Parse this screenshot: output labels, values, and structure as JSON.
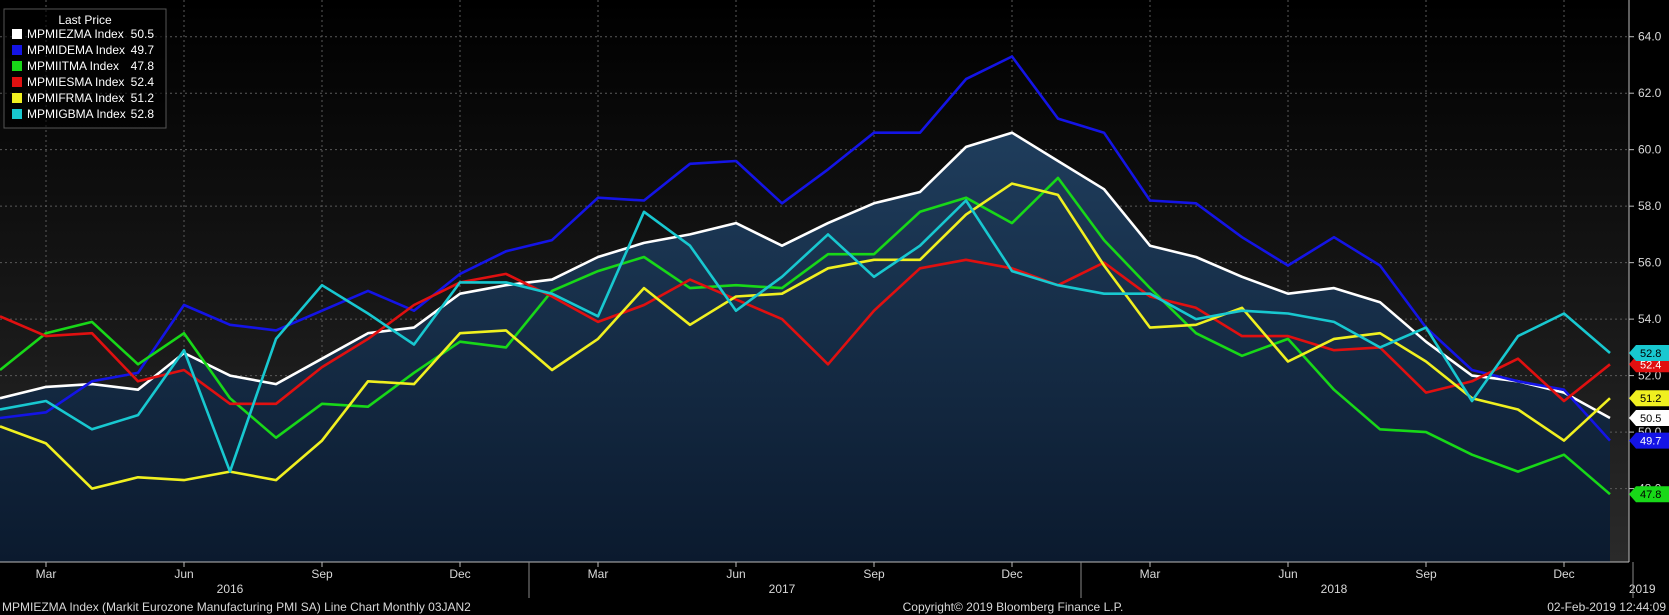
{
  "chart_data": {
    "type": "line",
    "title": "MPMIEZMA Index (Markit Eurozone Manufacturing PMI SA) Line Chart  Monthly 03JAN2",
    "legend_title": "Last Price",
    "legend_position": "top-left",
    "ylim": [
      45.4,
      65.3
    ],
    "yticks": [
      "64.0",
      "62.0",
      "60.0",
      "58.0",
      "56.0",
      "54.0",
      "52.0",
      "50.0",
      "48.0"
    ],
    "ytick_values": [
      64,
      62,
      60,
      58,
      56,
      54,
      52,
      50,
      48
    ],
    "x_month_labels": [
      {
        "label": "Mar",
        "index": 1
      },
      {
        "label": "Jun",
        "index": 4
      },
      {
        "label": "Sep",
        "index": 7
      },
      {
        "label": "Dec",
        "index": 10
      },
      {
        "label": "Mar",
        "index": 13
      },
      {
        "label": "Jun",
        "index": 16
      },
      {
        "label": "Sep",
        "index": 19
      },
      {
        "label": "Dec",
        "index": 22
      },
      {
        "label": "Mar",
        "index": 25
      },
      {
        "label": "Jun",
        "index": 28
      },
      {
        "label": "Sep",
        "index": 31
      },
      {
        "label": "Dec",
        "index": 34
      }
    ],
    "x_year_labels": [
      {
        "label": "2016",
        "index": 5
      },
      {
        "label": "2017",
        "index": 17
      },
      {
        "label": "2018",
        "index": 29
      },
      {
        "label": "2019",
        "index": 35.7
      }
    ],
    "grid": true,
    "series": [
      {
        "name": "MPMIEZMA Index",
        "last": "50.5",
        "color": "#ffffff",
        "filled": true,
        "values": [
          51.2,
          51.6,
          51.7,
          51.5,
          52.8,
          52.0,
          51.7,
          52.6,
          53.5,
          53.7,
          54.9,
          55.2,
          55.4,
          56.2,
          56.7,
          57.0,
          57.4,
          56.6,
          57.4,
          58.1,
          58.5,
          60.1,
          60.6,
          59.6,
          58.6,
          56.6,
          56.2,
          55.5,
          54.9,
          55.1,
          54.6,
          53.2,
          52.0,
          51.8,
          51.4,
          50.5
        ]
      },
      {
        "name": "MPMIDEMA Index",
        "last": "49.7",
        "color": "#1414e6",
        "values": [
          50.5,
          50.7,
          51.8,
          52.1,
          54.5,
          53.8,
          53.6,
          54.3,
          55.0,
          54.3,
          55.6,
          56.4,
          56.8,
          58.3,
          58.2,
          59.5,
          59.6,
          58.1,
          59.3,
          60.6,
          60.6,
          62.5,
          63.3,
          61.1,
          60.6,
          58.2,
          58.1,
          56.9,
          55.9,
          56.9,
          55.9,
          53.7,
          52.2,
          51.8,
          51.5,
          49.7
        ]
      },
      {
        "name": "MPMIITMA Index",
        "last": "47.8",
        "color": "#18d818",
        "values": [
          52.2,
          53.5,
          53.9,
          52.4,
          53.5,
          51.2,
          49.8,
          51.0,
          50.9,
          52.1,
          53.2,
          53.0,
          55.0,
          55.7,
          56.2,
          55.1,
          55.2,
          55.1,
          56.3,
          56.3,
          57.8,
          58.3,
          57.4,
          59.0,
          56.8,
          55.1,
          53.5,
          52.7,
          53.3,
          51.5,
          50.1,
          50.0,
          49.2,
          48.6,
          49.2,
          47.8
        ]
      },
      {
        "name": "MPMIESMA Index",
        "last": "52.4",
        "color": "#e01010",
        "values": [
          54.1,
          53.4,
          53.5,
          51.8,
          52.2,
          51.0,
          51.0,
          52.3,
          53.3,
          54.5,
          55.3,
          55.6,
          54.8,
          53.9,
          54.5,
          55.4,
          54.7,
          54.0,
          52.4,
          54.3,
          55.8,
          56.1,
          55.8,
          55.2,
          56.0,
          54.8,
          54.4,
          53.4,
          53.4,
          52.9,
          53.0,
          51.4,
          51.8,
          52.6,
          51.1,
          52.4
        ]
      },
      {
        "name": "MPMIFRMA Index",
        "last": "51.2",
        "color": "#f0f020",
        "values": [
          50.2,
          49.6,
          48.0,
          48.4,
          48.3,
          48.6,
          48.3,
          49.7,
          51.8,
          51.7,
          53.5,
          53.6,
          52.2,
          53.3,
          55.1,
          53.8,
          54.8,
          54.9,
          55.8,
          56.1,
          56.1,
          57.7,
          58.8,
          58.4,
          55.9,
          53.7,
          53.8,
          54.4,
          52.5,
          53.3,
          53.5,
          52.5,
          51.2,
          50.8,
          49.7,
          51.2
        ]
      },
      {
        "name": "MPMIGBMA Index",
        "last": "52.8",
        "color": "#18c8d0",
        "values": [
          50.8,
          51.1,
          50.1,
          50.6,
          52.9,
          48.6,
          53.3,
          55.2,
          54.2,
          53.1,
          55.3,
          55.3,
          54.9,
          54.1,
          57.8,
          56.6,
          54.3,
          55.5,
          57.0,
          55.5,
          56.6,
          58.2,
          55.7,
          55.2,
          54.9,
          54.9,
          54.0,
          54.3,
          54.2,
          53.9,
          53.0,
          53.7,
          51.1,
          53.4,
          54.2,
          52.8
        ]
      }
    ]
  },
  "footer": {
    "left": "MPMIEZMA Index (Markit Eurozone Manufacturing PMI SA) Line Chart  Monthly 03JAN2",
    "center": "Copyright© 2019 Bloomberg Finance L.P.",
    "right": "02-Feb-2019 12:44:09"
  }
}
